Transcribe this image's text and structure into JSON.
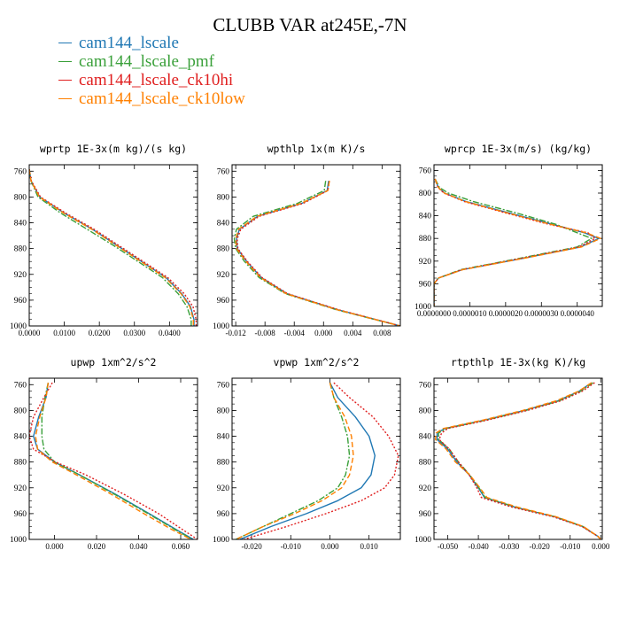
{
  "title": "CLUBB VAR at245E,-7N",
  "legend": [
    {
      "name": "cam144_lscale",
      "color": "#2078b4"
    },
    {
      "name": "cam144_lscale_pmf",
      "color": "#3aa03a"
    },
    {
      "name": "cam144_lscale_ck10hi",
      "color": "#e02020"
    },
    {
      "name": "cam144_lscale_ck10low",
      "color": "#ff8000"
    }
  ],
  "chart_data": [
    {
      "type": "line",
      "title": "wprtp  1E-3x(m kg)/(s kg)",
      "xlim": [
        0,
        0.048
      ],
      "ylim": [
        1000,
        750
      ],
      "xticks": [
        0,
        0.01,
        0.02,
        0.03,
        0.04
      ],
      "xticklabels": [
        "0.0000",
        "0.0100",
        "0.0200",
        "0.0300",
        "0.0400"
      ],
      "yticks": [
        760,
        800,
        840,
        880,
        920,
        960,
        1000
      ],
      "y": [
        757,
        775,
        800,
        825,
        850,
        875,
        900,
        925,
        950,
        970,
        990,
        1000
      ],
      "series": [
        {
          "name": "cam144_lscale",
          "x": [
            0.0,
            0.0005,
            0.003,
            0.01,
            0.018,
            0.025,
            0.032,
            0.039,
            0.0435,
            0.046,
            0.047,
            0.047
          ]
        },
        {
          "name": "cam144_lscale_pmf",
          "x": [
            0.0,
            0.0005,
            0.0025,
            0.009,
            0.0165,
            0.024,
            0.031,
            0.038,
            0.0425,
            0.045,
            0.0462,
            0.0462
          ]
        },
        {
          "name": "cam144_lscale_ck10hi",
          "x": [
            0.0,
            0.0006,
            0.0032,
            0.0104,
            0.0185,
            0.0255,
            0.0325,
            0.0395,
            0.0442,
            0.0467,
            0.0476,
            0.0476
          ]
        },
        {
          "name": "cam144_lscale_ck10low",
          "x": [
            0.0,
            0.0005,
            0.0029,
            0.0098,
            0.0178,
            0.0248,
            0.0318,
            0.0388,
            0.0433,
            0.0458,
            0.0468,
            0.0468
          ]
        }
      ]
    },
    {
      "type": "line",
      "title": "wpthlp  1x(m K)/s",
      "xlim": [
        -0.0125,
        0.0105
      ],
      "ylim": [
        1000,
        750
      ],
      "xticks": [
        -0.012,
        -0.008,
        -0.004,
        0,
        0.004,
        0.008
      ],
      "xticklabels": [
        "-0.012",
        "-0.008",
        "-0.004",
        "0.000",
        "0.004",
        "0.008"
      ],
      "yticks": [
        760,
        800,
        840,
        880,
        920,
        960,
        1000
      ],
      "y": [
        775,
        790,
        810,
        830,
        850,
        865,
        880,
        900,
        925,
        950,
        975,
        1000
      ],
      "series": [
        {
          "name": "cam144_lscale",
          "x": [
            0.0007,
            0.0005,
            -0.003,
            -0.009,
            -0.0115,
            -0.0119,
            -0.0118,
            -0.0105,
            -0.0085,
            -0.005,
            0.002,
            0.0105
          ]
        },
        {
          "name": "cam144_lscale_pmf",
          "x": [
            0.0003,
            0.0001,
            -0.0036,
            -0.0096,
            -0.0119,
            -0.0122,
            -0.012,
            -0.0108,
            -0.0088,
            -0.0052,
            0.0018,
            0.0105
          ]
        },
        {
          "name": "cam144_lscale_ck10hi",
          "x": [
            0.0008,
            0.0006,
            -0.0028,
            -0.0088,
            -0.0113,
            -0.0118,
            -0.0117,
            -0.0104,
            -0.0084,
            -0.0049,
            0.0021,
            0.0105
          ]
        },
        {
          "name": "cam144_lscale_ck10low",
          "x": [
            0.0008,
            0.0006,
            -0.0031,
            -0.0091,
            -0.0116,
            -0.012,
            -0.0119,
            -0.0106,
            -0.0086,
            -0.0051,
            0.0019,
            0.0105
          ]
        }
      ]
    },
    {
      "type": "line",
      "title": "wprcp  1E-3x(m/s) (kg/kg)",
      "xlim": [
        0,
        4.7e-06
      ],
      "ylim": [
        1000,
        750
      ],
      "xticks": [
        0,
        1e-06,
        2e-06,
        3e-06,
        4e-06
      ],
      "xticklabels": [
        "0.0000000",
        "0.0000010",
        "0.0000020",
        "0.0000030",
        "0.0000040"
      ],
      "yticks": [
        760,
        800,
        840,
        880,
        920,
        960,
        1000
      ],
      "y": [
        775,
        790,
        800,
        815,
        835,
        855,
        870,
        880,
        895,
        915,
        935,
        950,
        960,
        1000
      ],
      "series": [
        {
          "name": "cam144_lscale",
          "x": [
            3e-08,
            1.2e-07,
            3e-07,
            9e-07,
            2.1e-06,
            3.3e-06,
            4.2e-06,
            4.6e-06,
            4.1e-06,
            2.5e-06,
            8e-07,
            1.2e-07,
            0,
            0
          ]
        },
        {
          "name": "cam144_lscale_pmf",
          "x": [
            3e-08,
            1.5e-07,
            4e-07,
            1.1e-06,
            2.3e-06,
            3.4e-06,
            4e-06,
            4.4e-06,
            4e-06,
            2.4e-06,
            7.5e-07,
            1.2e-07,
            0,
            0
          ]
        },
        {
          "name": "cam144_lscale_ck10hi",
          "x": [
            3e-08,
            1.1e-07,
            2.8e-07,
            8.5e-07,
            2e-06,
            3.2e-06,
            4.3e-06,
            4.5e-06,
            4.05e-06,
            2.45e-06,
            7.8e-07,
            1.2e-07,
            0,
            0
          ]
        },
        {
          "name": "cam144_lscale_ck10low",
          "x": [
            3e-08,
            1.2e-07,
            2.9e-07,
            8.8e-07,
            2.05e-06,
            3.25e-06,
            4.25e-06,
            4.65e-06,
            4.12e-06,
            2.52e-06,
            8.1e-07,
            1.2e-07,
            0,
            0
          ]
        }
      ]
    },
    {
      "type": "line",
      "title": "upwp  1xm^2/s^2",
      "xlim": [
        -0.012,
        0.068
      ],
      "ylim": [
        1000,
        750
      ],
      "xticks": [
        0,
        0.02,
        0.04,
        0.06
      ],
      "xticklabels": [
        "0.000",
        "0.020",
        "0.040",
        "0.060"
      ],
      "yticks": [
        760,
        800,
        840,
        880,
        920,
        960,
        1000
      ],
      "y": [
        757,
        780,
        810,
        840,
        860,
        880,
        900,
        930,
        960,
        985,
        1000
      ],
      "series": [
        {
          "name": "cam144_lscale",
          "x": [
            -0.003,
            -0.004,
            -0.0075,
            -0.01,
            -0.008,
            0.0,
            0.012,
            0.029,
            0.045,
            0.058,
            0.066
          ]
        },
        {
          "name": "cam144_lscale_pmf",
          "x": [
            -0.003,
            -0.0045,
            -0.006,
            -0.006,
            -0.005,
            0.0,
            0.012,
            0.0285,
            0.0445,
            0.0575,
            0.0655
          ]
        },
        {
          "name": "cam144_lscale_ck10hi",
          "x": [
            -0.001,
            -0.005,
            -0.01,
            -0.012,
            -0.01,
            0.0005,
            0.015,
            0.033,
            0.0495,
            0.061,
            0.068
          ]
        },
        {
          "name": "cam144_lscale_ck10low",
          "x": [
            -0.003,
            -0.004,
            -0.007,
            -0.009,
            -0.008,
            -0.001,
            0.0105,
            0.027,
            0.0425,
            0.056,
            0.065
          ]
        }
      ]
    },
    {
      "type": "line",
      "title": "vpwp  1xm^2/s^2",
      "xlim": [
        -0.025,
        0.018
      ],
      "ylim": [
        1000,
        750
      ],
      "xticks": [
        -0.02,
        -0.01,
        0,
        0.01
      ],
      "xticklabels": [
        "-0.020",
        "-0.010",
        "0.000",
        "0.010"
      ],
      "yticks": [
        760,
        800,
        840,
        880,
        920,
        960,
        1000
      ],
      "y": [
        757,
        780,
        810,
        840,
        870,
        900,
        920,
        940,
        960,
        980,
        1000
      ],
      "series": [
        {
          "name": "cam144_lscale",
          "x": [
            0.0,
            0.002,
            0.0065,
            0.01,
            0.0115,
            0.0105,
            0.008,
            0.002,
            -0.006,
            -0.015,
            -0.023
          ]
        },
        {
          "name": "cam144_lscale_pmf",
          "x": [
            0.0,
            0.001,
            0.003,
            0.0045,
            0.005,
            0.004,
            0.002,
            -0.003,
            -0.01,
            -0.017,
            -0.024
          ]
        },
        {
          "name": "cam144_lscale_ck10hi",
          "x": [
            0.001,
            0.005,
            0.011,
            0.015,
            0.0175,
            0.0165,
            0.014,
            0.008,
            -0.001,
            -0.011,
            -0.022
          ]
        },
        {
          "name": "cam144_lscale_ck10low",
          "x": [
            0.0,
            0.001,
            0.0038,
            0.0055,
            0.006,
            0.005,
            0.003,
            -0.002,
            -0.009,
            -0.017,
            -0.024
          ]
        }
      ]
    },
    {
      "type": "line",
      "title": "rtpthlp  1E-3x(kg K)/kg",
      "xlim": [
        -0.0545,
        0.0005
      ],
      "ylim": [
        1000,
        750
      ],
      "xticks": [
        -0.05,
        -0.04,
        -0.03,
        -0.02,
        -0.01,
        0
      ],
      "xticklabels": [
        "-0.050",
        "-0.040",
        "-0.030",
        "-0.020",
        "-0.010",
        "0.000"
      ],
      "yticks": [
        760,
        800,
        840,
        880,
        920,
        960,
        1000
      ],
      "y": [
        757,
        770,
        785,
        800,
        815,
        828,
        835,
        845,
        860,
        880,
        900,
        920,
        935,
        950,
        965,
        980,
        995,
        1000
      ],
      "series": [
        {
          "name": "cam144_lscale",
          "x": [
            -0.003,
            -0.007,
            -0.014,
            -0.025,
            -0.038,
            -0.051,
            -0.0535,
            -0.0535,
            -0.05,
            -0.047,
            -0.043,
            -0.04,
            -0.038,
            -0.028,
            -0.015,
            -0.006,
            -0.001,
            0.0
          ]
        },
        {
          "name": "cam144_lscale_pmf",
          "x": [
            -0.0025,
            -0.0065,
            -0.0135,
            -0.0245,
            -0.0375,
            -0.0505,
            -0.053,
            -0.053,
            -0.0495,
            -0.0465,
            -0.0428,
            -0.0398,
            -0.0378,
            -0.0278,
            -0.0148,
            -0.0058,
            -0.001,
            0.0
          ]
        },
        {
          "name": "cam144_lscale_ck10hi",
          "x": [
            -0.002,
            -0.006,
            -0.013,
            -0.024,
            -0.037,
            -0.05,
            -0.052,
            -0.0528,
            -0.0495,
            -0.0465,
            -0.043,
            -0.0405,
            -0.039,
            -0.029,
            -0.0155,
            -0.0062,
            -0.001,
            0.0
          ]
        },
        {
          "name": "cam144_lscale_ck10low",
          "x": [
            -0.003,
            -0.0072,
            -0.0145,
            -0.0255,
            -0.0385,
            -0.0515,
            -0.0538,
            -0.054,
            -0.0505,
            -0.0475,
            -0.0428,
            -0.0395,
            -0.0372,
            -0.0272,
            -0.0145,
            -0.0057,
            -0.001,
            0.0
          ]
        }
      ]
    }
  ]
}
